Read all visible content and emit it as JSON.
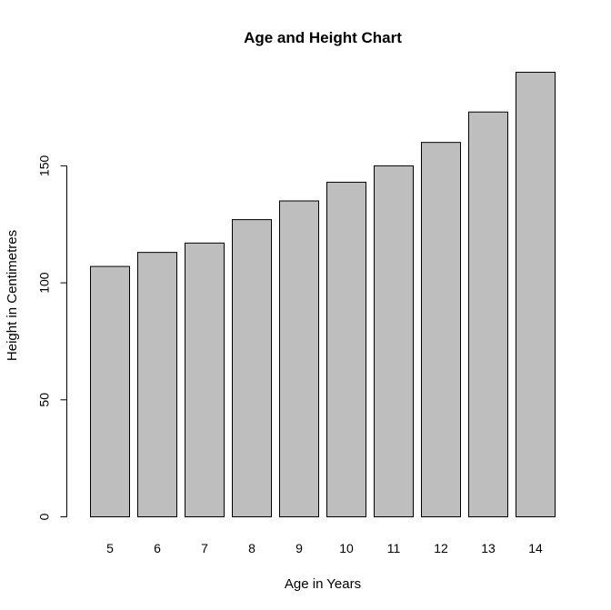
{
  "chart_data": {
    "type": "bar",
    "title": "Age and Height Chart",
    "xlabel": "Age in Years",
    "ylabel": "Height in Centimetres",
    "categories": [
      "5",
      "6",
      "7",
      "8",
      "9",
      "10",
      "11",
      "12",
      "13",
      "14"
    ],
    "values": [
      107,
      113,
      117,
      127,
      135,
      143,
      150,
      160,
      173,
      190
    ],
    "ylim": [
      0,
      190
    ],
    "yticks": [
      0,
      50,
      100,
      150
    ],
    "bar_color": "#bebebe",
    "grid": false,
    "legend": "none"
  }
}
